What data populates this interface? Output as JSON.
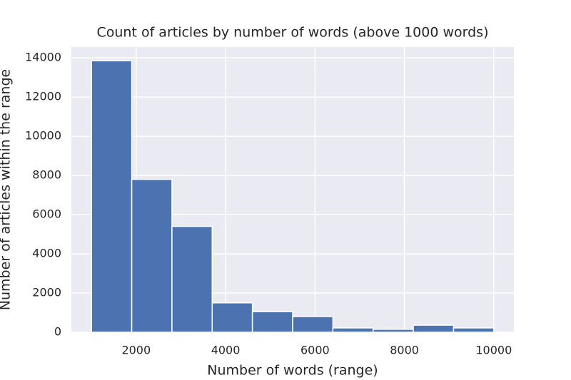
{
  "chart_data": {
    "type": "histogram",
    "title": "Count of articles by number of words (above 1000 words)",
    "x_label": "Number of words (range)",
    "y_label": "Number of articles within the range",
    "bins": [
      1000,
      1900,
      2800,
      3700,
      4600,
      5500,
      6400,
      7300,
      8200,
      9100,
      10000
    ],
    "values": [
      13850,
      7800,
      5400,
      1500,
      1050,
      800,
      220,
      150,
      360,
      220
    ],
    "color": "#4c72b0",
    "xlim": [
      550,
      10450
    ],
    "xticks": [
      2000,
      4000,
      6000,
      8000,
      10000
    ],
    "ylim": [
      0,
      14550
    ],
    "yticks": [
      0,
      2000,
      4000,
      6000,
      8000,
      10000,
      12000,
      14000
    ],
    "grid": true
  }
}
